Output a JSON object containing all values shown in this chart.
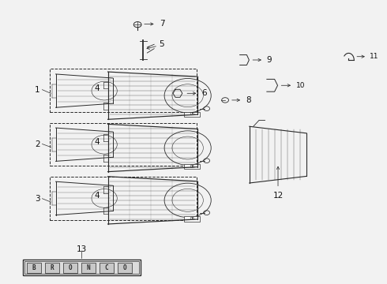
{
  "bg_color": "#f2f2f2",
  "line_color": "#2a2a2a",
  "label_color": "#111111",
  "fig_width": 4.9,
  "fig_height": 3.6,
  "dpi": 100,
  "letters_bronco": [
    "B",
    "R",
    "O",
    "N",
    "C",
    "O"
  ],
  "label_fs": 7.5,
  "small_label_fs": 6.5
}
